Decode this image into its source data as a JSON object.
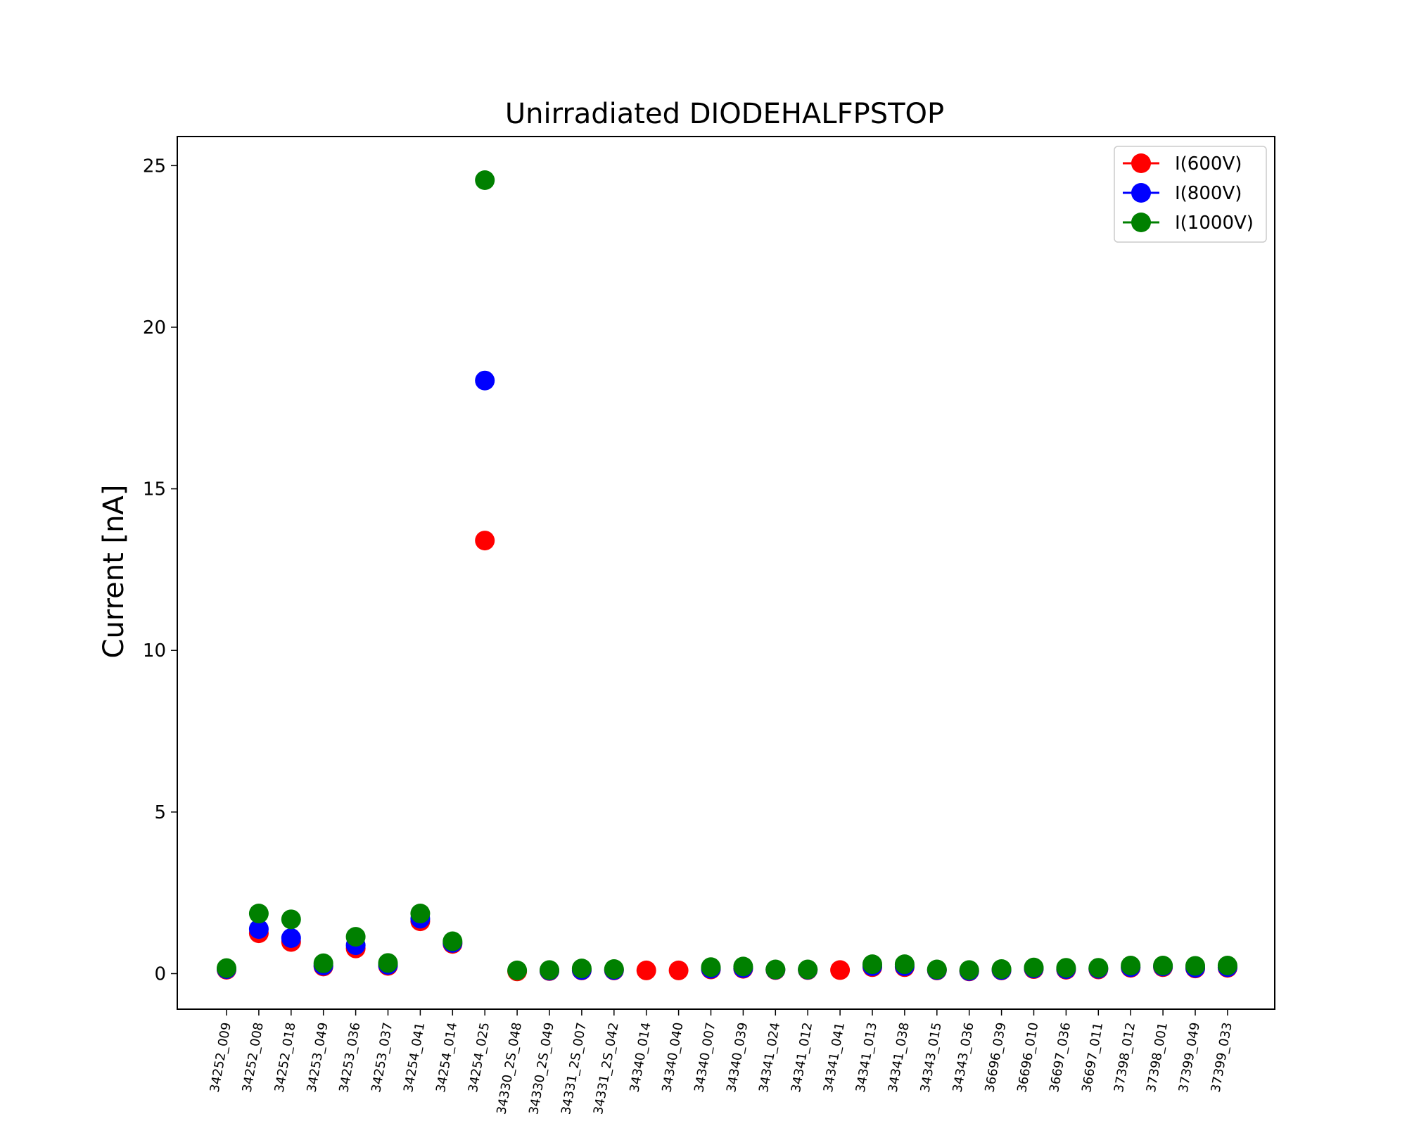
{
  "chart_data": {
    "type": "scatter",
    "title": "Unirradiated DIODEHALFPSTOP",
    "ylabel_main": "Current ",
    "ylabel_unit": "[nA]",
    "xlabel": "",
    "ylim": [
      -1.1,
      25.9
    ],
    "yticks": [
      0,
      5,
      10,
      15,
      20,
      25
    ],
    "ytick_labels": [
      "0",
      "5",
      "10",
      "15",
      "20",
      "25"
    ],
    "legend_position": "top-right",
    "grid": false,
    "categories": [
      "34252_009",
      "34252_008",
      "34252_018",
      "34253_049",
      "34253_036",
      "34253_037",
      "34254_041",
      "34254_014",
      "34254_025",
      "34330_2S_048",
      "34330_2S_049",
      "34331_2S_007",
      "34331_2S_042",
      "34340_014",
      "34340_040",
      "34340_007",
      "34340_039",
      "34341_024",
      "34341_012",
      "34341_041",
      "34341_013",
      "34341_038",
      "34343_015",
      "34343_036",
      "36696_039",
      "36696_010",
      "36697_036",
      "36697_011",
      "37398_012",
      "37398_001",
      "37399_049",
      "37399_033"
    ],
    "series": [
      {
        "name": "I(600V)",
        "color": "#ff0000",
        "values": [
          0.12,
          1.25,
          0.98,
          0.22,
          0.78,
          0.24,
          1.62,
          0.92,
          13.4,
          0.07,
          0.08,
          0.1,
          0.1,
          0.1,
          0.1,
          0.13,
          0.15,
          0.11,
          0.11,
          0.11,
          0.2,
          0.2,
          0.1,
          0.07,
          0.1,
          0.14,
          0.12,
          0.13,
          0.18,
          0.2,
          0.16,
          0.18
        ]
      },
      {
        "name": "I(800V)",
        "color": "#0000ff",
        "values": [
          0.14,
          1.38,
          1.1,
          0.25,
          0.88,
          0.27,
          1.7,
          0.95,
          18.35,
          null,
          0.09,
          0.11,
          0.11,
          null,
          null,
          0.15,
          0.17,
          0.12,
          0.12,
          null,
          0.23,
          0.23,
          0.11,
          0.08,
          0.11,
          0.16,
          0.14,
          0.15,
          0.2,
          0.22,
          0.18,
          0.2
        ]
      },
      {
        "name": "I(1000V)",
        "color": "#008000",
        "values": [
          0.17,
          1.86,
          1.68,
          0.32,
          1.14,
          0.33,
          1.86,
          1.0,
          24.55,
          0.1,
          0.11,
          0.16,
          0.14,
          null,
          null,
          0.2,
          0.22,
          0.13,
          0.13,
          null,
          0.29,
          0.29,
          0.13,
          0.11,
          0.14,
          0.19,
          0.18,
          0.18,
          0.25,
          0.25,
          0.24,
          0.25
        ]
      }
    ]
  }
}
